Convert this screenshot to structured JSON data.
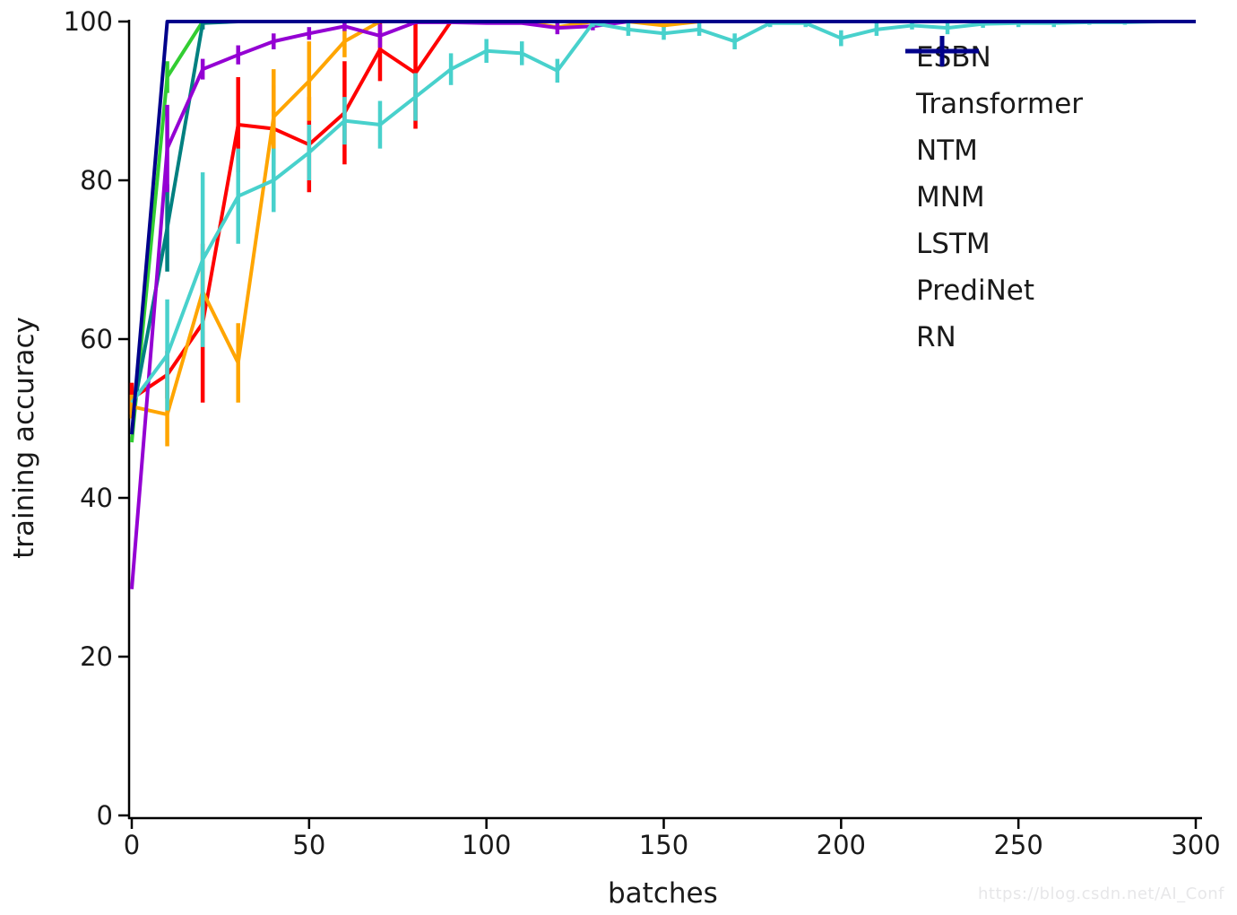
{
  "watermark": {
    "text": "https://blog.csdn.net/AI_Conf"
  },
  "chart_data": {
    "type": "line",
    "title": "",
    "xlabel": "batches",
    "ylabel": "training accuracy",
    "xlim": [
      0,
      300
    ],
    "ylim": [
      0,
      100
    ],
    "x_ticks": [
      0,
      50,
      100,
      150,
      200,
      250,
      300
    ],
    "y_ticks": [
      0,
      20,
      40,
      60,
      80,
      100
    ],
    "grid": false,
    "legend_position": "upper right",
    "x": [
      0,
      10,
      20,
      30,
      40,
      50,
      60,
      70,
      80,
      90,
      100,
      110,
      120,
      130,
      140,
      150,
      160,
      170,
      180,
      190,
      200,
      210,
      220,
      230,
      240,
      250,
      260,
      270,
      280,
      290,
      300
    ],
    "series": [
      {
        "name": "ESBN",
        "color": "#ff0000",
        "values": [
          52.5,
          55.5,
          62,
          87,
          86.5,
          84.5,
          88.5,
          96.5,
          93.5,
          100,
          100,
          100,
          100,
          100,
          100,
          100,
          100,
          100,
          100,
          100,
          100,
          100,
          100,
          100,
          100,
          100,
          100,
          100,
          100,
          100,
          100
        ],
        "errors": [
          2,
          3,
          10,
          6,
          5.5,
          6,
          6.5,
          4,
          7,
          0,
          0,
          0,
          0,
          0,
          0,
          0,
          0,
          0,
          0,
          0,
          0,
          0,
          0,
          0,
          0,
          0,
          0,
          0,
          0,
          0,
          0
        ]
      },
      {
        "name": "Transformer",
        "color": "#32cd32",
        "values": [
          47,
          93,
          100,
          100,
          100,
          100,
          100,
          100,
          100,
          100,
          100,
          100,
          100,
          100,
          100,
          100,
          100,
          100,
          100,
          100,
          100,
          100,
          100,
          100,
          100,
          100,
          100,
          100,
          100,
          100,
          100
        ],
        "errors": [
          0,
          2,
          0,
          0,
          0,
          0,
          0,
          0,
          0,
          0,
          0,
          0,
          0,
          0,
          0,
          0,
          0,
          0,
          0,
          0,
          0,
          0,
          0,
          0,
          0,
          0,
          0,
          0,
          0,
          0,
          0
        ]
      },
      {
        "name": "NTM",
        "color": "#008080",
        "values": [
          50,
          74,
          99.8,
          100,
          100,
          100,
          100,
          100,
          100,
          100,
          100,
          100,
          100,
          100,
          100,
          100,
          100,
          100,
          100,
          100,
          100,
          100,
          100,
          100,
          100,
          100,
          100,
          100,
          100,
          100,
          100
        ],
        "errors": [
          0,
          5.5,
          0.8,
          0,
          0,
          0,
          0,
          0,
          0,
          0,
          0,
          0,
          0,
          0,
          0,
          0,
          0,
          0,
          0,
          0,
          0,
          0,
          0,
          0,
          0,
          0,
          0,
          0,
          0,
          0,
          0
        ]
      },
      {
        "name": "MNM",
        "color": "#ffa500",
        "values": [
          51.5,
          50.5,
          66,
          57,
          88,
          92.5,
          97.5,
          100,
          100,
          100,
          100,
          100,
          99.3,
          100,
          100,
          99.5,
          100,
          100,
          100,
          100,
          100,
          100,
          100,
          100,
          100,
          100,
          100,
          100,
          100,
          100,
          100
        ],
        "errors": [
          1.5,
          4,
          5,
          5,
          6,
          5,
          2,
          0,
          0,
          0,
          0,
          0,
          0.4,
          0,
          0,
          0.3,
          0,
          0,
          0,
          0,
          0,
          0,
          0,
          0,
          0,
          0,
          0,
          0,
          0,
          0,
          0
        ]
      },
      {
        "name": "LSTM",
        "color": "#9400d3",
        "values": [
          28.5,
          84,
          94,
          95.8,
          97.5,
          98.5,
          99.4,
          98.2,
          99.9,
          99.9,
          99.8,
          99.8,
          99.2,
          99.4,
          100,
          100,
          100,
          100,
          100,
          100,
          100,
          100,
          100,
          100,
          100,
          100,
          100,
          100,
          100,
          100,
          100
        ],
        "errors": [
          0,
          5.5,
          1.3,
          1.2,
          1,
          0.8,
          0.6,
          1.5,
          0,
          0,
          0,
          0,
          0.8,
          0.5,
          0,
          0,
          0,
          0,
          0,
          0,
          0,
          0,
          0,
          0,
          0,
          0,
          0,
          0,
          0,
          0,
          0
        ]
      },
      {
        "name": "PrediNet",
        "color": "#48d1cc",
        "values": [
          52,
          58,
          70,
          78,
          80,
          83.5,
          87.5,
          87,
          90.5,
          94,
          96.3,
          96,
          93.8,
          99.8,
          99,
          98.5,
          99,
          97.5,
          99.8,
          99.8,
          97.9,
          99,
          99.5,
          99.2,
          99.7,
          99.8,
          99.8,
          99.9,
          99.9,
          100,
          100
        ],
        "errors": [
          0,
          7,
          11,
          6,
          4,
          3.5,
          3,
          3,
          3,
          2,
          1.5,
          1.5,
          1.5,
          0.5,
          0.8,
          0.8,
          0.8,
          1,
          0.5,
          0.5,
          1,
          0.8,
          0.5,
          0.8,
          0.5,
          0.5,
          0.5,
          0.3,
          0.3,
          0,
          0
        ]
      },
      {
        "name": "RN",
        "color": "#00008b",
        "values": [
          48,
          100,
          100,
          100,
          100,
          100,
          100,
          100,
          100,
          100,
          100,
          100,
          100,
          100,
          100,
          100,
          100,
          100,
          100,
          100,
          100,
          100,
          100,
          100,
          100,
          100,
          100,
          100,
          100,
          100,
          100
        ],
        "errors": [
          0,
          0,
          0,
          0,
          0,
          0,
          0,
          0,
          0,
          0,
          0,
          0,
          0,
          0,
          0,
          0,
          0,
          0,
          0,
          0,
          0,
          0,
          0,
          0,
          0,
          0,
          0,
          0,
          0,
          0,
          0
        ]
      }
    ]
  }
}
